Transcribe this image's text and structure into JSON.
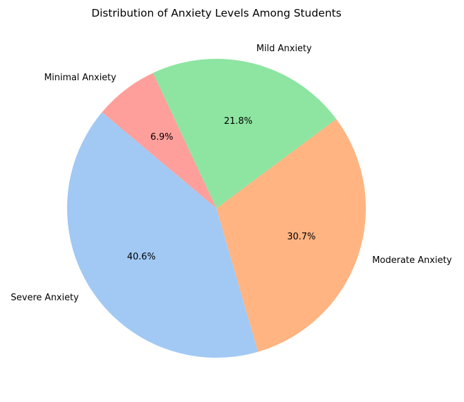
{
  "chart_data": {
    "type": "pie",
    "title": "Distribution of Anxiety Levels Among Students",
    "categories": [
      "Severe Anxiety",
      "Moderate Anxiety",
      "Mild Anxiety",
      "Minimal Anxiety"
    ],
    "values": [
      40.6,
      30.7,
      21.8,
      6.9
    ],
    "percent_labels": [
      "40.6%",
      "30.7%",
      "21.8%",
      "6.9%"
    ],
    "colors": [
      "#a1c9f4",
      "#ffb482",
      "#8de5a1",
      "#ff9f9b"
    ],
    "start_angle_deg": 140,
    "direction": "counterclockwise",
    "legend": "none"
  }
}
